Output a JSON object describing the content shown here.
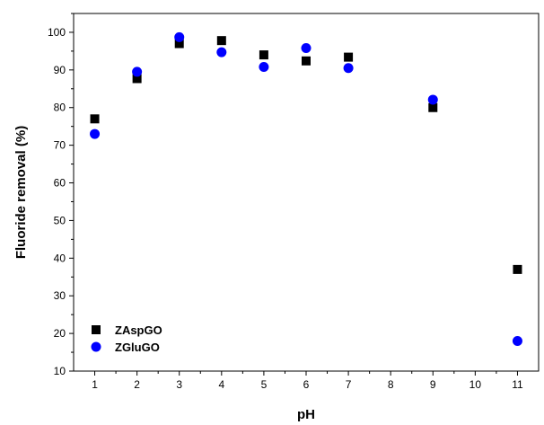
{
  "chart_data": {
    "type": "scatter",
    "title": "",
    "xlabel": "pH",
    "ylabel": "Fluoride removal (%)",
    "xlim": [
      0.5,
      11.5
    ],
    "ylim": [
      10,
      105
    ],
    "x_ticks": [
      1,
      2,
      3,
      4,
      5,
      6,
      7,
      8,
      9,
      10,
      11
    ],
    "y_ticks": [
      10,
      20,
      30,
      40,
      50,
      60,
      70,
      80,
      90,
      100
    ],
    "grid": false,
    "legend_position": "bottom-left",
    "series": [
      {
        "name": "ZAspGO",
        "marker": "square",
        "color": "#000000",
        "x": [
          1,
          2,
          3,
          4,
          5,
          6,
          7,
          9,
          11
        ],
        "y": [
          77,
          87.7,
          97,
          97.8,
          94,
          92.4,
          93.4,
          80,
          37
        ]
      },
      {
        "name": "ZGluGO",
        "marker": "circle",
        "color": "#0000ff",
        "x": [
          1,
          2,
          3,
          4,
          5,
          6,
          7,
          9,
          11
        ],
        "y": [
          73,
          89.5,
          98.7,
          94.7,
          90.8,
          95.8,
          90.5,
          82.1,
          18
        ]
      }
    ]
  }
}
